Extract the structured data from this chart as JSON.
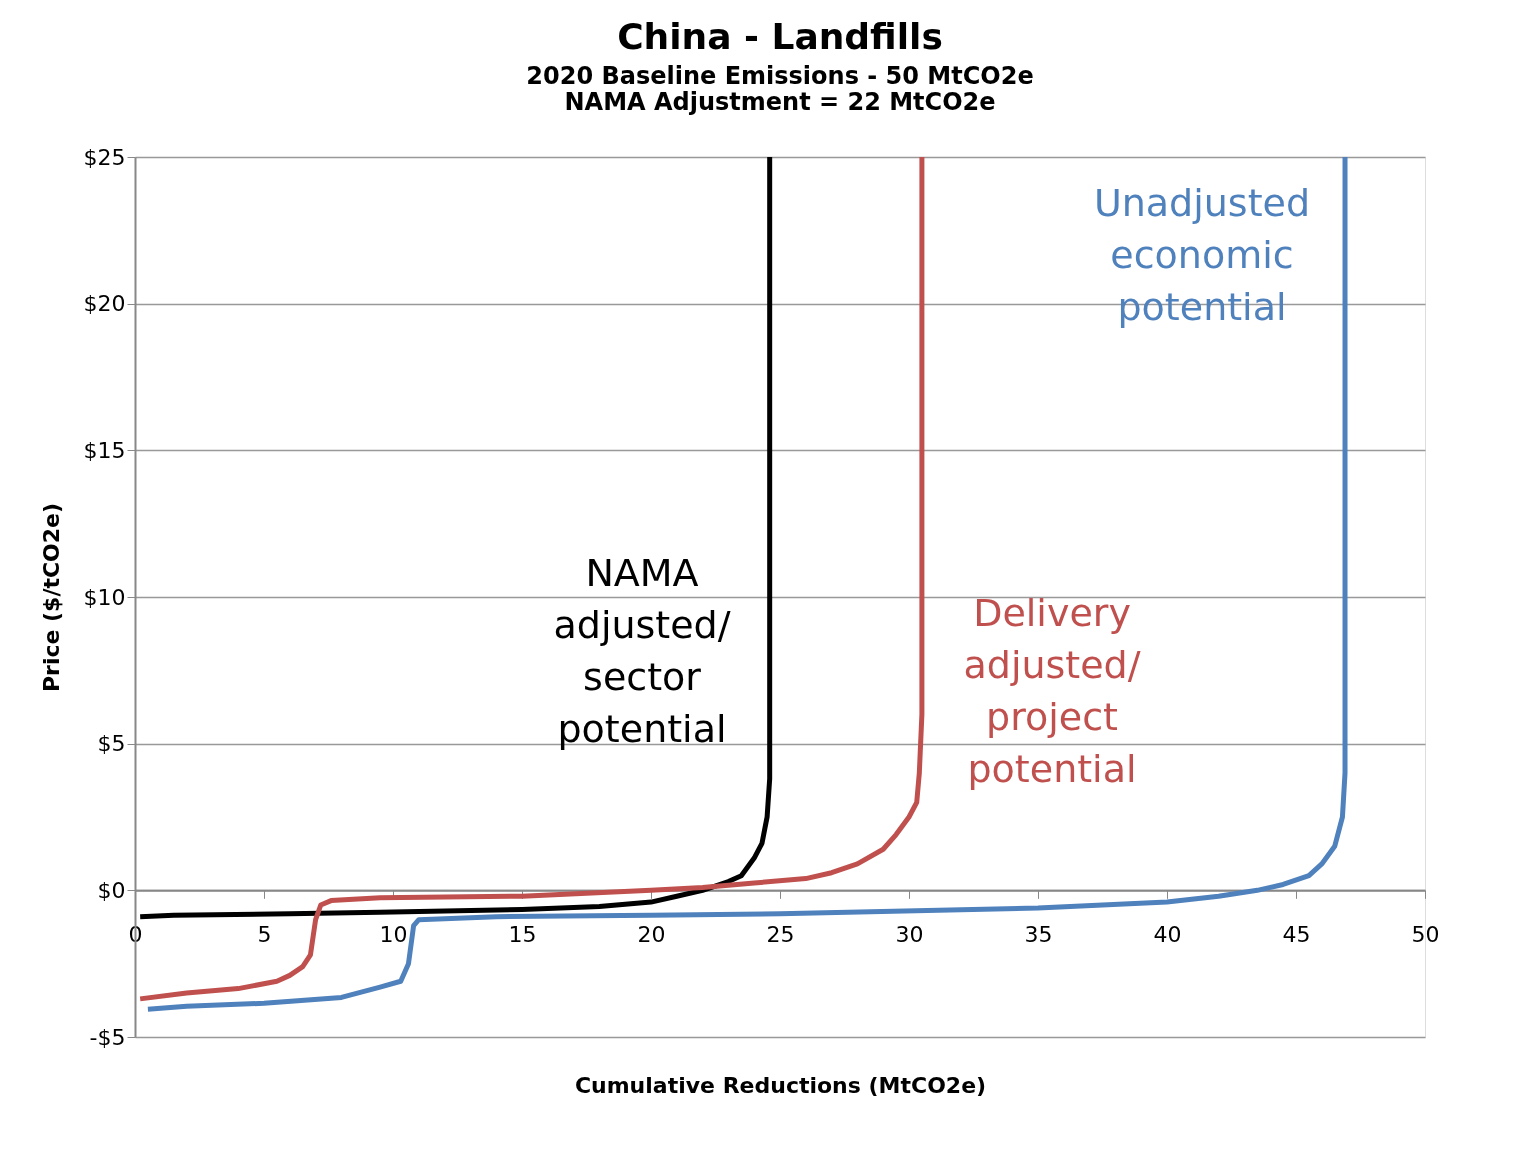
{
  "chart_data": {
    "type": "line",
    "title": "China - Landfills",
    "subtitle": "2020 Baseline Emissions - 50 MtCO2e\nNAMA Adjustment = 22 MtCO2e",
    "xlabel": "Cumulative Reductions (MtCO2e)",
    "ylabel": "Price ($/tCO2e)",
    "xlim": [
      0,
      50
    ],
    "xticks": [
      0,
      5,
      10,
      15,
      20,
      25,
      30,
      35,
      40,
      45,
      50
    ],
    "ylim": [
      -5,
      25
    ],
    "yticks": [
      {
        "value": -5,
        "label": "-$5"
      },
      {
        "value": 0,
        "label": "$0"
      },
      {
        "value": 5,
        "label": "$5"
      },
      {
        "value": 10,
        "label": "$10"
      },
      {
        "value": 15,
        "label": "$15"
      },
      {
        "value": 20,
        "label": "$20"
      },
      {
        "value": 25,
        "label": "$25"
      }
    ],
    "grid": "y",
    "marker": "none",
    "line_style": "solid",
    "series": [
      {
        "name": "NAMA adjusted/ sector potential",
        "color": "#000000",
        "x": [
          0.2,
          1.5,
          6,
          9.5,
          15,
          18,
          20,
          21,
          22,
          23,
          23.5,
          24,
          24.3,
          24.5,
          24.6,
          24.6
        ],
        "values": [
          -0.9,
          -0.85,
          -0.8,
          -0.75,
          -0.65,
          -0.55,
          -0.4,
          -0.2,
          0,
          0.3,
          0.5,
          1.1,
          1.6,
          2.5,
          3.8,
          25
        ]
      },
      {
        "name": "Delivery adjusted/ project potential",
        "color": "#c0504d",
        "x": [
          0.2,
          2,
          4,
          5.5,
          6,
          6.5,
          6.8,
          7.0,
          7.2,
          7.6,
          9.5,
          15,
          20,
          22,
          24,
          26,
          27,
          28,
          29,
          29.5,
          30,
          30.3,
          30.4,
          30.5,
          30.5
        ],
        "values": [
          -3.7,
          -3.5,
          -3.35,
          -3.1,
          -2.9,
          -2.6,
          -2.2,
          -1.0,
          -0.5,
          -0.35,
          -0.25,
          -0.2,
          0,
          0.1,
          0.25,
          0.4,
          0.6,
          0.9,
          1.4,
          1.9,
          2.5,
          3.0,
          4.0,
          6.0,
          25
        ]
      },
      {
        "name": "Unadjusted economic potential",
        "color": "#4f81bd",
        "x": [
          0.5,
          2,
          5,
          8,
          9.5,
          10.3,
          10.6,
          10.8,
          11,
          14,
          20,
          25,
          35,
          40,
          42,
          43.5,
          44.5,
          45.5,
          46,
          46.5,
          46.8,
          46.9,
          46.9
        ],
        "values": [
          -4.05,
          -3.95,
          -3.85,
          -3.65,
          -3.3,
          -3.1,
          -2.5,
          -1.2,
          -1.0,
          -0.9,
          -0.85,
          -0.8,
          -0.6,
          -0.4,
          -0.2,
          0,
          0.2,
          0.5,
          0.9,
          1.5,
          2.5,
          4.0,
          25
        ]
      }
    ]
  }
}
